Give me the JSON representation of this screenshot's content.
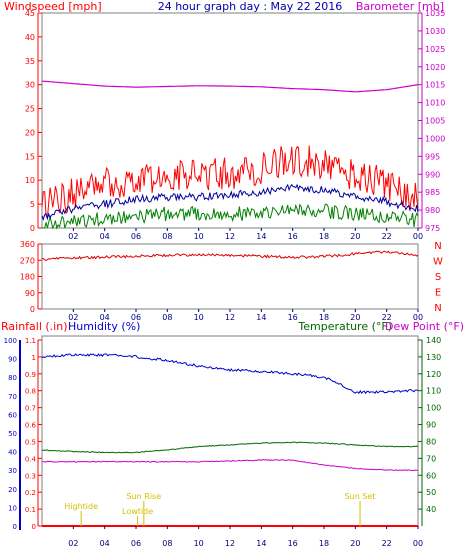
{
  "header": {
    "left_label": "Windspeed [mph]",
    "title": "24 hour graph day : May 22 2016",
    "right_label": "Barometer [mb]"
  },
  "colors": {
    "wind": "#ff0000",
    "gust_avg": "#0000a0",
    "wind_low": "#008000",
    "barometer": "#cc00cc",
    "direction": "#dd0000",
    "rain_axis": "#ff0000",
    "humidity_axis": "#0000cc",
    "temperature": "#006600",
    "dewpoint": "#cc00cc",
    "events": "#d4c000",
    "frame": "#808080"
  },
  "x_ticks": [
    "02",
    "04",
    "06",
    "08",
    "10",
    "12",
    "14",
    "16",
    "18",
    "20",
    "22",
    "00"
  ],
  "chart_data": [
    {
      "type": "line",
      "title": "24 hour graph day : May 22 2016",
      "y_left_label": "Windspeed [mph]",
      "y_right_label": "Barometer [mb]",
      "ylim_left": [
        0,
        45
      ],
      "ylim_right": [
        975,
        1035
      ],
      "y_left_ticks": [
        0,
        5,
        10,
        15,
        20,
        25,
        30,
        35,
        40,
        45
      ],
      "y_right_ticks": [
        975,
        980,
        985,
        990,
        995,
        1000,
        1005,
        1010,
        1015,
        1020,
        1025,
        1030,
        1035
      ],
      "x": [
        "00",
        "02",
        "04",
        "06",
        "08",
        "10",
        "12",
        "14",
        "16",
        "18",
        "20",
        "22",
        "00"
      ],
      "series": [
        {
          "key": "gust",
          "axis": "left",
          "values": [
            4.5,
            7,
            9,
            10.5,
            10.5,
            11,
            11.5,
            12.5,
            14.5,
            13.5,
            11,
            9.5,
            6
          ]
        },
        {
          "key": "avg",
          "axis": "left",
          "values": [
            2.5,
            4,
            5,
            6,
            6.5,
            6.5,
            7,
            7.5,
            8.5,
            8,
            6.5,
            5.5,
            4
          ]
        },
        {
          "key": "low",
          "axis": "left",
          "values": [
            1,
            1.5,
            2,
            2.5,
            3,
            3,
            3,
            3,
            3.5,
            3.5,
            3,
            2.5,
            1.5
          ]
        },
        {
          "key": "baro",
          "axis": "right",
          "values": [
            1016,
            1015.3,
            1014.6,
            1014.3,
            1014.5,
            1014.7,
            1014.6,
            1014.4,
            1013.9,
            1013.6,
            1013,
            1013.6,
            1015
          ]
        }
      ]
    },
    {
      "type": "line",
      "ylim": [
        0,
        360
      ],
      "y_ticks": [
        0,
        90,
        180,
        270,
        360
      ],
      "compass_labels": [
        "N",
        "W",
        "S",
        "E",
        "N"
      ],
      "x": [
        "00",
        "02",
        "04",
        "06",
        "08",
        "10",
        "12",
        "14",
        "16",
        "18",
        "20",
        "22",
        "00"
      ],
      "series": [
        {
          "key": "direction",
          "values": [
            275,
            282,
            288,
            292,
            298,
            300,
            298,
            292,
            286,
            290,
            305,
            318,
            296
          ]
        }
      ]
    },
    {
      "type": "line",
      "left_label_rain": "Rainfall (.in)",
      "left_label_hum": "Humidity (%)",
      "label_temp": "Temperature (°F)",
      "label_dew": "Dew Point (°F)",
      "ylim_rain": [
        0,
        1.1
      ],
      "ylim_humidity": [
        0,
        100
      ],
      "ylim_temp": [
        30,
        140
      ],
      "rain_ticks": [
        "0",
        "0.1",
        "0.2",
        "0.3",
        "0.4",
        "0.5",
        "0.6",
        "0.7",
        "0.8",
        "0.9",
        "1",
        "1.1"
      ],
      "humidity_ticks": [
        0,
        10,
        20,
        30,
        40,
        50,
        60,
        70,
        80,
        90,
        100
      ],
      "temp_ticks": [
        40,
        50,
        60,
        70,
        80,
        90,
        100,
        110,
        120,
        130,
        140
      ],
      "x": [
        "00",
        "02",
        "04",
        "06",
        "08",
        "10",
        "12",
        "14",
        "16",
        "18",
        "20",
        "22",
        "00"
      ],
      "series": [
        {
          "key": "humidity",
          "values": [
            91,
            92,
            92,
            91,
            89,
            86,
            84,
            83,
            82,
            80,
            72,
            72,
            73
          ]
        },
        {
          "key": "temperature",
          "values": [
            75,
            74,
            73.5,
            73.5,
            75,
            77,
            78,
            79,
            79.5,
            79,
            78,
            77,
            77
          ]
        },
        {
          "key": "dewpoint",
          "values": [
            68,
            68,
            68,
            68,
            68,
            68,
            68.5,
            69,
            69,
            66,
            64,
            63,
            63
          ]
        },
        {
          "key": "rain",
          "values": [
            0,
            0,
            0,
            0,
            0,
            0,
            0,
            0,
            0,
            0,
            0,
            0,
            0
          ]
        }
      ],
      "events": [
        {
          "label": "Hightide",
          "hour": 2.5
        },
        {
          "label": "Lowtide",
          "hour": 6.1
        },
        {
          "label": "Sun Rise",
          "hour": 6.5
        },
        {
          "label": "Sun Set",
          "hour": 20.3
        }
      ]
    }
  ]
}
